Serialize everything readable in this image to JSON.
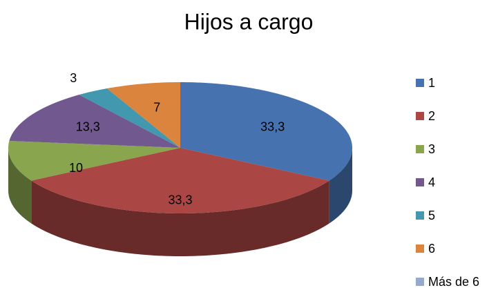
{
  "chart_data": {
    "type": "pie",
    "title": "Hijos a cargo",
    "categories": [
      "1",
      "2",
      "3",
      "4",
      "5",
      "6",
      "Más de 6"
    ],
    "values": [
      33.3,
      33.3,
      10,
      13.3,
      3,
      7,
      0
    ],
    "value_labels": [
      "33,3",
      "33,3",
      "10",
      "13,3",
      "3",
      "7",
      null
    ],
    "colors": [
      "#4672b0",
      "#aa4644",
      "#89a54e",
      "#71588f",
      "#4198af",
      "#db843d",
      "#93a9cf"
    ],
    "legend": "right"
  }
}
